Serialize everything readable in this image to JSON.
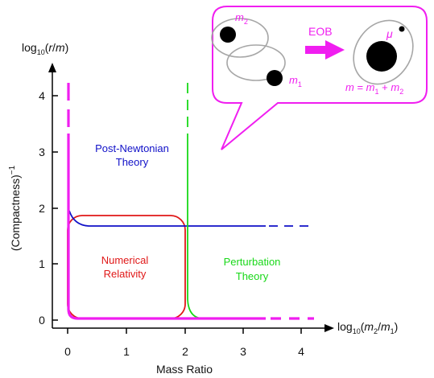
{
  "colors": {
    "magenta": "#f01ef0",
    "blue": "#1010c8",
    "red": "#e01818",
    "green": "#18d818",
    "gray": "#a6a6a6",
    "axis": "#000000"
  },
  "y_axis": {
    "label_log": "log",
    "label_log_sub": "10",
    "label_paren_open": "(",
    "label_var": "r",
    "label_slash": "/",
    "label_m": "m",
    "label_paren_close": ")",
    "title": "(Compactness)",
    "title_sup": "−1",
    "ticks": [
      "0",
      "1",
      "2",
      "3",
      "4"
    ]
  },
  "x_axis": {
    "label_log": "log",
    "label_log_sub": "10",
    "label_paren_open": "(",
    "label_m2": "m",
    "label_m2_sub": "2",
    "label_slash": "/",
    "label_m1": "m",
    "label_m1_sub": "1",
    "label_paren_close": ")",
    "title": "Mass Ratio",
    "ticks": [
      "0",
      "1",
      "2",
      "3",
      "4"
    ]
  },
  "regions": {
    "pn_line1": "Post-Newtonian",
    "pn_line2": "Theory",
    "nr_line1": "Numerical",
    "nr_line2": "Relativity",
    "pt_line1": "Perturbation",
    "pt_line2": "Theory"
  },
  "bubble": {
    "m2_label": "m",
    "m2_sub": "2",
    "m1_label": "m",
    "m1_sub": "1",
    "arrow_label": "EOB",
    "mu_label": "μ",
    "eq_m": "m",
    "eq_equals": " = ",
    "eq_m1": "m",
    "eq_m1_sub": "1",
    "eq_plus": " + ",
    "eq_m2": "m",
    "eq_m2_sub": "2"
  }
}
